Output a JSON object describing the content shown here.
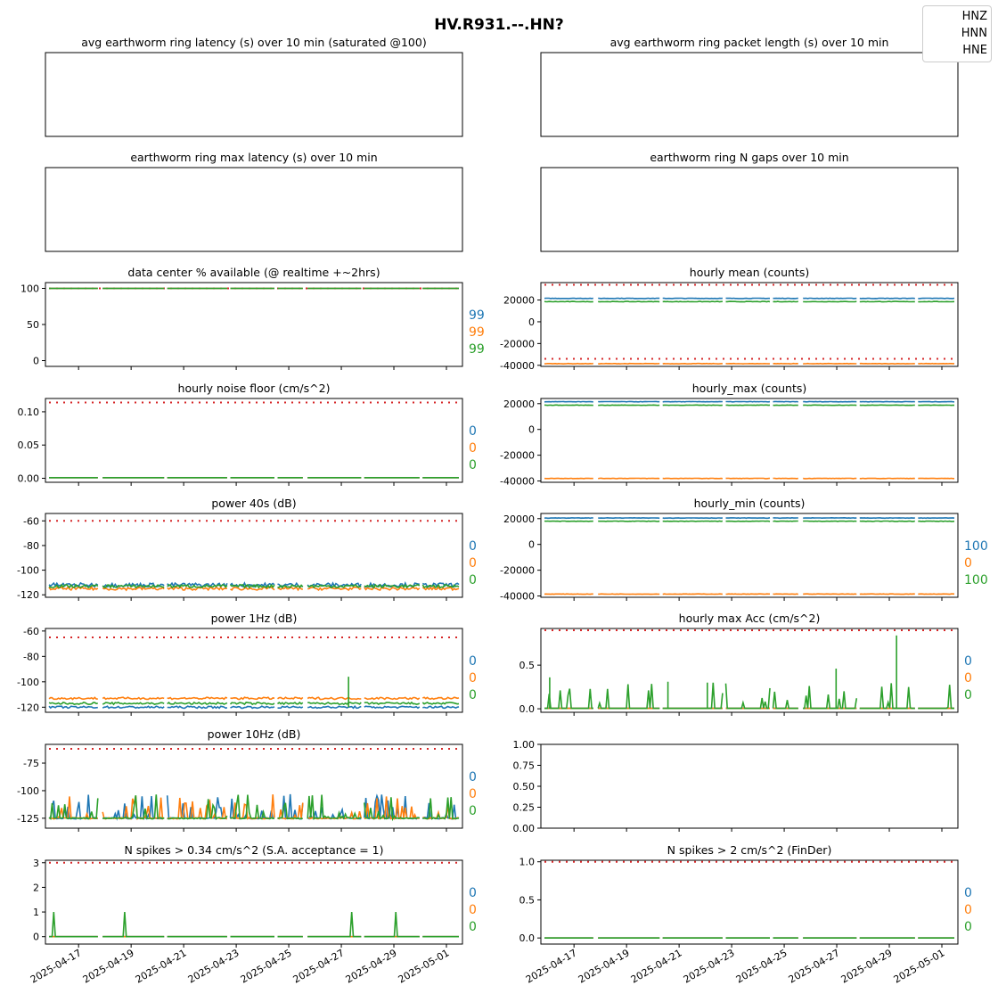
{
  "figure": {
    "title": "HV.R931.--.HN?",
    "legend": [
      "HNZ",
      "HNN",
      "HNE"
    ],
    "series_colors": [
      "#1f77b4",
      "#ff7f0e",
      "#2ca02c"
    ],
    "threshold_color": "#d62728",
    "x_ticks": [
      "2025-04-17",
      "2025-04-19",
      "2025-04-21",
      "2025-04-23",
      "2025-04-25",
      "2025-04-27",
      "2025-04-29",
      "2025-05-01"
    ],
    "x_range": [
      "2025-04-15T21:00",
      "2025-05-01T12:00"
    ]
  },
  "chart_data": [
    {
      "id": "p1",
      "type": "line",
      "title": "avg earthworm ring latency (s)   over 10 min (saturated @100)",
      "empty": true,
      "yticks": [],
      "series": []
    },
    {
      "id": "p2",
      "type": "line",
      "title": "avg earthworm ring packet length (s)   over 10 min",
      "empty": true,
      "yticks": [],
      "series": []
    },
    {
      "id": "p3",
      "type": "line",
      "title": "earthworm ring max latency (s)   over 10 min",
      "empty": true,
      "yticks": [],
      "series": []
    },
    {
      "id": "p4",
      "type": "line",
      "title": "earthworm ring N gaps   over 10 min",
      "empty": true,
      "yticks": [],
      "series": []
    },
    {
      "id": "p5",
      "type": "line",
      "title": "data center % available (@ realtime +~2hrs)",
      "ylim": [
        -8,
        108
      ],
      "yticks": [
        {
          "v": 100,
          "t": "100"
        },
        {
          "v": 50,
          "t": "50"
        },
        {
          "v": 0,
          "t": "0"
        }
      ],
      "thresholds": [
        100
      ],
      "side_values": [
        "99",
        "99",
        "99"
      ],
      "series": [
        {
          "legend": "HNZ",
          "base": 100,
          "noise": 0
        },
        {
          "legend": "HNN",
          "base": 100,
          "noise": 0
        },
        {
          "legend": "HNE",
          "base": 100,
          "noise": 0
        }
      ]
    },
    {
      "id": "p6",
      "type": "line",
      "title": "hourly mean (counts)",
      "ylim": [
        -41000,
        36000
      ],
      "yticks": [
        {
          "v": 20000,
          "t": "20000"
        },
        {
          "v": 0,
          "t": "0"
        },
        {
          "v": -20000,
          "t": "-20000"
        },
        {
          "v": -40000,
          "t": "-40000"
        }
      ],
      "thresholds": [
        34000,
        -34000
      ],
      "side_values": [],
      "series": [
        {
          "legend": "HNZ",
          "base": 21500,
          "noise": 200
        },
        {
          "legend": "HNN",
          "base": -38500,
          "noise": 200
        },
        {
          "legend": "HNE",
          "base": 18500,
          "noise": 200
        }
      ]
    },
    {
      "id": "p7",
      "type": "line",
      "title": "hourly noise floor (cm/s^2)",
      "ylim": [
        -0.006,
        0.12
      ],
      "yticks": [
        {
          "v": 0.1,
          "t": "0.10"
        },
        {
          "v": 0.05,
          "t": "0.05"
        },
        {
          "v": 0,
          "t": "0.00"
        }
      ],
      "thresholds": [
        0.114
      ],
      "side_values": [
        "0",
        "0",
        "0"
      ],
      "series": [
        {
          "legend": "HNZ",
          "base": 0.001,
          "noise": 0
        },
        {
          "legend": "HNN",
          "base": 0.001,
          "noise": 0
        },
        {
          "legend": "HNE",
          "base": 0.001,
          "noise": 0
        }
      ]
    },
    {
      "id": "p8",
      "type": "line",
      "title": "hourly_max (counts)",
      "ylim": [
        -41000,
        24000
      ],
      "yticks": [
        {
          "v": 20000,
          "t": "20000"
        },
        {
          "v": 0,
          "t": "0"
        },
        {
          "v": -20000,
          "t": "-20000"
        },
        {
          "v": -40000,
          "t": "-40000"
        }
      ],
      "thresholds": [],
      "side_values": [],
      "series": [
        {
          "legend": "HNZ",
          "base": 21500,
          "noise": 150
        },
        {
          "legend": "HNN",
          "base": -38000,
          "noise": 150
        },
        {
          "legend": "HNE",
          "base": 18800,
          "noise": 150
        }
      ]
    },
    {
      "id": "p9",
      "type": "line",
      "title": "power 40s (dB)",
      "ylim": [
        -122,
        -54
      ],
      "yticks": [
        {
          "v": -60,
          "t": "-60"
        },
        {
          "v": -80,
          "t": "-80"
        },
        {
          "v": -100,
          "t": "-100"
        },
        {
          "v": -120,
          "t": "-120"
        }
      ],
      "thresholds": [
        -60
      ],
      "side_values": [
        "0",
        "0",
        "0"
      ],
      "series": [
        {
          "legend": "HNZ",
          "base": -112,
          "noise": 1.6
        },
        {
          "legend": "HNN",
          "base": -115,
          "noise": 1.2
        },
        {
          "legend": "HNE",
          "base": -113,
          "noise": 1.2
        }
      ]
    },
    {
      "id": "p10",
      "type": "line",
      "title": "hourly_min (counts)",
      "ylim": [
        -41000,
        24000
      ],
      "yticks": [
        {
          "v": 20000,
          "t": "20000"
        },
        {
          "v": 0,
          "t": "0"
        },
        {
          "v": -20000,
          "t": "-20000"
        },
        {
          "v": -40000,
          "t": "-40000"
        }
      ],
      "thresholds": [],
      "side_values": [
        "100",
        "0",
        "100"
      ],
      "series": [
        {
          "legend": "HNZ",
          "base": 20500,
          "noise": 150
        },
        {
          "legend": "HNN",
          "base": -38500,
          "noise": 150
        },
        {
          "legend": "HNE",
          "base": 18000,
          "noise": 150
        }
      ]
    },
    {
      "id": "p11",
      "type": "line",
      "title": "power 1Hz (dB)",
      "ylim": [
        -124,
        -58
      ],
      "yticks": [
        {
          "v": -60,
          "t": "-60"
        },
        {
          "v": -80,
          "t": "-80"
        },
        {
          "v": -100,
          "t": "-100"
        },
        {
          "v": -120,
          "t": "-120"
        }
      ],
      "thresholds": [
        -65
      ],
      "side_values": [
        "0",
        "0",
        "0"
      ],
      "series": [
        {
          "legend": "HNZ",
          "base": -120,
          "noise": 0.8
        },
        {
          "legend": "HNN",
          "base": -113,
          "noise": 0.8
        },
        {
          "legend": "HNE",
          "base": -117,
          "noise": 0.8
        }
      ]
    },
    {
      "id": "p12",
      "type": "line",
      "title": "hourly max Acc (cm/s^2)",
      "ylim": [
        -0.04,
        0.92
      ],
      "yticks": [
        {
          "v": 0.5,
          "t": "0.5"
        },
        {
          "v": 0,
          "t": "0.0"
        }
      ],
      "thresholds": [
        0.9
      ],
      "side_values": [
        "0",
        "0",
        "0"
      ],
      "series": [
        {
          "legend": "HNZ",
          "base": 0.005,
          "noise": 0
        },
        {
          "legend": "HNN",
          "base": 0.005,
          "noise": 0
        },
        {
          "legend": "HNE",
          "base": 0.005,
          "noise": 0
        }
      ]
    },
    {
      "id": "p13",
      "type": "line",
      "title": "power 10Hz (dB)",
      "ylim": [
        -134,
        -58
      ],
      "yticks": [
        {
          "v": -75,
          "t": "-75"
        },
        {
          "v": -100,
          "t": "-100"
        },
        {
          "v": -125,
          "t": "-125"
        }
      ],
      "thresholds": [
        -62
      ],
      "side_values": [
        "0",
        "0",
        "0"
      ],
      "series": [
        {
          "legend": "HNZ",
          "base": -125,
          "noise": 0.6
        },
        {
          "legend": "HNN",
          "base": -125,
          "noise": 0.6
        },
        {
          "legend": "HNE",
          "base": -125,
          "noise": 0.6
        }
      ]
    },
    {
      "id": "p14",
      "type": "line",
      "title": "",
      "empty": true,
      "xticks_shown": true,
      "ylim": [
        0,
        1
      ],
      "yticks": [
        {
          "v": 1,
          "t": "1.00"
        },
        {
          "v": 0.75,
          "t": "0.75"
        },
        {
          "v": 0.5,
          "t": "0.50"
        },
        {
          "v": 0.25,
          "t": "0.25"
        },
        {
          "v": 0,
          "t": "0.00"
        }
      ],
      "series": []
    },
    {
      "id": "p15",
      "type": "line",
      "title": "N spikes > 0.34 cm/s^2 (S.A. acceptance = 1)",
      "ylim": [
        -0.3,
        3.1
      ],
      "yticks": [
        {
          "v": 3,
          "t": "3"
        },
        {
          "v": 2,
          "t": "2"
        },
        {
          "v": 1,
          "t": "1"
        },
        {
          "v": 0,
          "t": "0"
        }
      ],
      "thresholds": [
        3
      ],
      "side_values": [
        "0",
        "0",
        "0"
      ],
      "series": [
        {
          "legend": "HNZ",
          "base": 0,
          "noise": 0
        },
        {
          "legend": "HNN",
          "base": 0,
          "noise": 0
        },
        {
          "legend": "HNE",
          "base": 0,
          "noise": 0
        }
      ],
      "events": [
        {
          "x": 0.2,
          "y": 1
        },
        {
          "x": 2.9,
          "y": 1
        },
        {
          "x": 11.5,
          "y": 1
        },
        {
          "x": 13.2,
          "y": 1
        }
      ]
    },
    {
      "id": "p16",
      "type": "line",
      "title": "N spikes > 2 cm/s^2 (FinDer)",
      "ylim": [
        -0.08,
        1.02
      ],
      "yticks": [
        {
          "v": 1,
          "t": "1.0"
        },
        {
          "v": 0.5,
          "t": "0.5"
        },
        {
          "v": 0,
          "t": "0.0"
        }
      ],
      "thresholds": [
        1
      ],
      "side_values": [
        "0",
        "0",
        "0"
      ],
      "series": [
        {
          "legend": "HNZ",
          "base": 0,
          "noise": 0
        },
        {
          "legend": "HNN",
          "base": 0,
          "noise": 0
        },
        {
          "legend": "HNE",
          "base": 0,
          "noise": 0
        }
      ]
    }
  ]
}
